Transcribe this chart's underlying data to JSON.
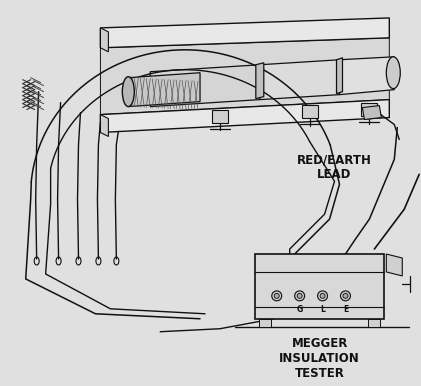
{
  "background_color": "#e0e0e0",
  "line_color": "#111111",
  "fill_light": "#e8e8e8",
  "fill_mid": "#d0d0d0",
  "fill_dark": "#b8b8b8",
  "label_red_earth": "RED/EARTH\nLEAD",
  "label_megger": "MEGGER\nINSULATION\nTESTER",
  "terminal_labels": [
    "G",
    "L",
    "E"
  ],
  "fig_width": 4.21,
  "fig_height": 3.86,
  "dpi": 100
}
